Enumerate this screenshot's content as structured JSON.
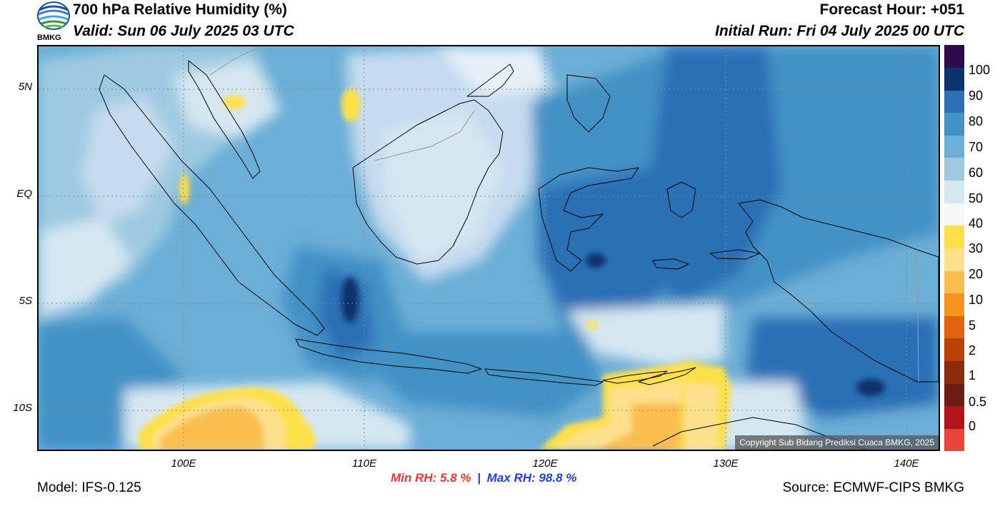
{
  "header": {
    "title": "700 hPa Relative Humidity (%)",
    "valid": "Valid: Sun 06 July 2025 03 UTC",
    "forecast_hour": "Forecast Hour: +051",
    "initial_run": "Initial Run: Fri 04 July 2025 00 UTC"
  },
  "logo": {
    "text": "BMKG",
    "icon": "bmkg-logo-icon"
  },
  "map": {
    "lat_labels": [
      {
        "text": "5N",
        "lat": 5
      },
      {
        "text": "EQ",
        "lat": 0
      },
      {
        "text": "5S",
        "lat": -5
      },
      {
        "text": "10S",
        "lat": -10
      }
    ],
    "lon_labels": [
      {
        "text": "100E",
        "lon": 100
      },
      {
        "text": "110E",
        "lon": 110
      },
      {
        "text": "120E",
        "lon": 120
      },
      {
        "text": "130E",
        "lon": 130
      },
      {
        "text": "140E",
        "lon": 140
      }
    ],
    "copyright": "Copyright Sub Bidang Prediksi Cuaca BMKG, 2025"
  },
  "colorbar": {
    "labels": [
      "100",
      "90",
      "80",
      "70",
      "60",
      "50",
      "40",
      "30",
      "20",
      "10",
      "5",
      "2",
      "1",
      "0.5",
      "0"
    ],
    "colors": [
      "#e8453a",
      "#b3141a",
      "#6b1d12",
      "#8a2a0c",
      "#b8420a",
      "#e06410",
      "#f7941e",
      "#fbbf4f",
      "#fde08c",
      "#fee04a",
      "#f7f7f7",
      "#d6e7f2",
      "#9ecae1",
      "#6baed6",
      "#4292c6",
      "#2c6fb5",
      "#08336b",
      "#2d0a4a"
    ]
  },
  "stats": {
    "min_label": "Min RH:",
    "min_value": "5.8 %",
    "separator": "|",
    "max_label": "Max RH:",
    "max_value": "98.8 %"
  },
  "footer": {
    "model": "Model: IFS-0.125",
    "source": "Source: ECMWF-CIPS BMKG"
  }
}
